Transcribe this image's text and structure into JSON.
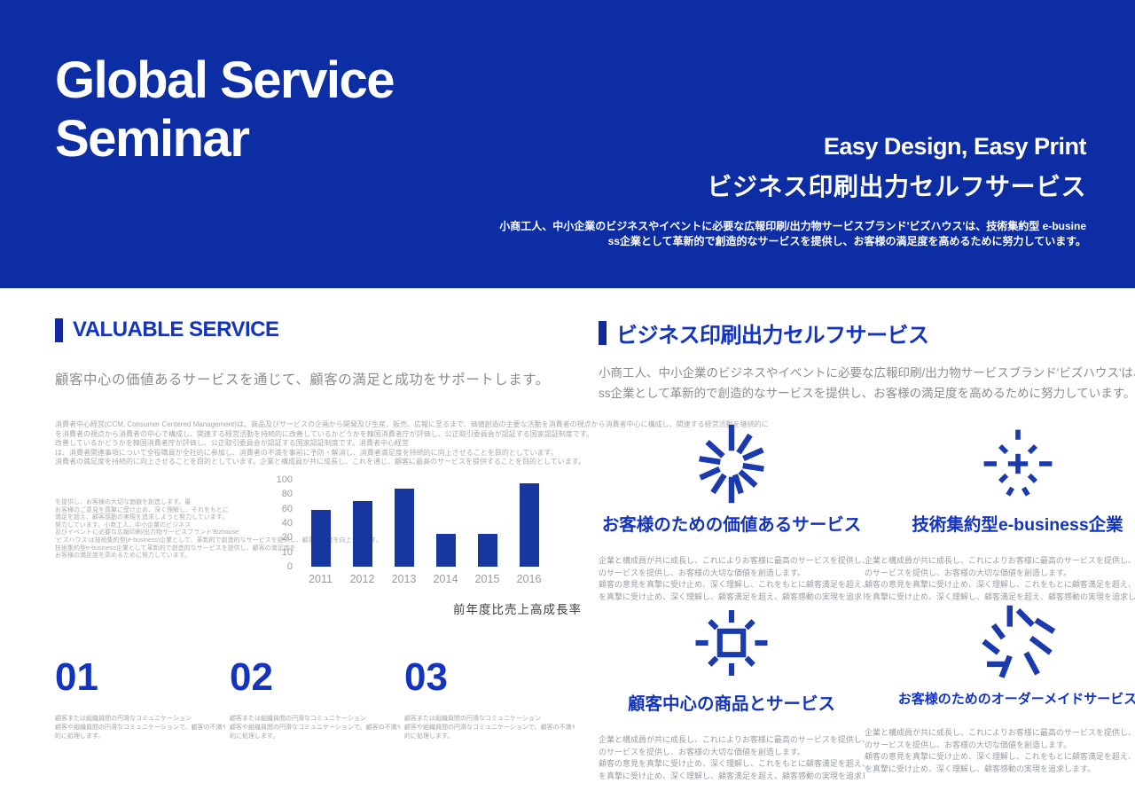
{
  "colors": {
    "header_bg": "#0c2da4",
    "accent_blue": "#1334c0",
    "bar_fill": "#18369f",
    "icon_blue": "#1b3aad",
    "gray_text": "#8c8c8c",
    "tiny_gray": "#a9a9a9"
  },
  "header": {
    "title": "Global Service\nSeminar",
    "tagline_en": "Easy Design, Easy Print",
    "tagline_jp": "ビジネス印刷出力セルフサービス",
    "description_lines": [
      "小商工人、中小企業のビジネスやイベントに必要な広報印刷/出力物サービスブランド'ビズハウス'は、技術集約型 e-busine",
      "ss企業として革新的で創造的なサービスを提供し、お客様の満足度を高めるために努力しています。"
    ]
  },
  "left": {
    "heading": "VALUABLE SERVICE",
    "subtitle": "顧客中心の価値あるサービスを通じて、顧客の満足と成功をサポートします。",
    "paragraph_lines": [
      "消費者中心経営(CCM, Consumer Centered Management)は、商品及びサービスの企画から開発及び生産、販売、広報に至るまで、価値創造の主要な活動を消費者の視点から消費者中心に構成し、関連する経営活動を継続的に",
      "を消費者の視点から消費者の中心で構成し、関連する経営活動を持続的に改善しているかどうかを韓国消費者庁が評価し、公正取引委員会が認証する国家認証制度です。",
      "改善しているかどうかを韓国消費者庁が評価し、公正取引委員会が認証する国家認証制度です。消費者中心経営",
      "は、消費者関連事項について全役職員が全社的に参加し、消費者の不満を事前に予防・解消し、消費者満足度を持続的に向上させることを目的としています。",
      "消費者の満足度を持続的に向上させることを目的としています。企業と構成員が共に成長し、これを通じ、顧客に最高のサービスを提供することを目的としています。"
    ],
    "chart_side_lines": [
      "を提供し、お客様の大切な価値を創造します。最",
      "お客様のご意見を真摯に受け止め、深く理解し、それをもとに",
      "満足を超え、顧客感動の実現を追求しようと努力しています。",
      "努力しています。小商工人、中小企業のビジネス",
      "及びイベントに必要な広報印刷/出力物サービスブランド'Bizhouse'",
      "'ビズハウス'は技術集約型(e-business)企業として、革新的で創造的なサービスを提供し、顧客満足度を向上させます。",
      "技術集約型e-business企業として革新的で創造的なサービスを提供し、顧客の満足度を",
      "お客様の満足度を高めるために努力しています。"
    ],
    "items": [
      {
        "number": "01",
        "lines": [
          "顧客または組織員間の円滑なコミュニケーション",
          "顧客や組織員間の円滑なコミュニケーションで、顧客の不満や内部苦情を効率的に",
          "的に処理します。"
        ]
      },
      {
        "number": "02",
        "lines": [
          "顧客または組織員間の円滑なコミュニケーション",
          "顧客や組織員間の円滑なコミュニケーションで、顧客の不満や内部苦情を効率的に",
          "的に処理します。"
        ]
      },
      {
        "number": "03",
        "lines": [
          "顧客または組織員間の円滑なコミュニケーション",
          "顧客や組織員間の円滑なコミュニケーションで、顧客の不満や内部苦情を効率的に",
          "的に処理します。"
        ]
      }
    ]
  },
  "chart_data": {
    "type": "bar",
    "title": "前年度比売上高成長率",
    "categories": [
      "2011",
      "2012",
      "2013",
      "2014",
      "2015",
      "2016"
    ],
    "values": [
      58,
      70,
      88,
      25,
      25,
      95
    ],
    "y_ticks": [
      100,
      80,
      60,
      40,
      20,
      10,
      0
    ],
    "xlabel": "",
    "ylabel": "",
    "ylim": [
      0,
      100
    ],
    "grid": false,
    "legend": "none",
    "axis_note": "y-axis tick labels are equally spaced as printed (non-linear scale)"
  },
  "right": {
    "heading": "ビジネス印刷出力セルフサービス",
    "intro_lines": [
      "小商工人、中小企業のビジネスやイベントに必要な広報印刷/出力物サービスブランド'ビズハウス'は、技術集約型e-busine",
      "ss企業として革新的で創造的なサービスを提供し、お客様の満足度を高めるために努力しています。"
    ],
    "features": [
      {
        "icon": "burst-solid-icon",
        "title": "お客様のための価値あるサービス",
        "body_lines": [
          "企業と構成員が共に成長し、これによりお客様に最高のサービスを提供し、お客様の大切な価値を創造します。",
          "のサービスを提供し、お客様の大切な価値を創造します。",
          "顧客の意見を真摯に受け止め、深く理解し、これをもとに顧客満足を超え、顧客感動の実現を追求します。",
          "を真摯に受け止め、深く理解し、顧客満足を超え、顧客感動の実現を追求します。"
        ]
      },
      {
        "icon": "burst-dashed-icon",
        "title": "技術集約型e-business企業",
        "body_lines": [
          "企業と構成員が共に成長し、これによりお客様に最高のサービスを提供し、お客様の大切な価値を創造します。",
          "のサービスを提供し、お客様の大切な価値を創造します。",
          "顧客の意見を真摯に受け止め、深く理解し、これをもとに顧客満足を超え、顧客感動の実現を追求します。",
          "を真摯に受け止め、深く理解し、顧客満足を超え、顧客感動の実現を追求します。"
        ]
      },
      {
        "icon": "burst-square-icon",
        "title": "顧客中心の商品とサービス",
        "body_lines": [
          "企業と構成員が共に成長し、これによりお客様に最高のサービスを提供し、お客様の大切な価値を創造します。",
          "のサービスを提供し、お客様の大切な価値を創造します。",
          "顧客の意見を真摯に受け止め、深く理解し、これをもとに顧客満足を超え、顧客感動の実現を追求します。",
          "を真摯に受け止め、深く理解し、顧客満足を超え、顧客感動の実現を追求します。"
        ]
      },
      {
        "icon": "burst-spiral-icon",
        "title": "お客様のためのオーダーメイドサービス",
        "body_lines": [
          "企業と構成員が共に成長し、これによりお客様に最高のサービスを提供し、お客様の大切な価値を創造します。",
          "のサービスを提供し、お客様の大切な価値を創造します。",
          "顧客の意見を真摯に受け止め、深く理解し、これをもとに顧客満足を超え、顧客感動の実現を追求します。",
          "を真摯に受け止め、深く理解し、顧客感動の実現を追求します。"
        ]
      }
    ]
  }
}
